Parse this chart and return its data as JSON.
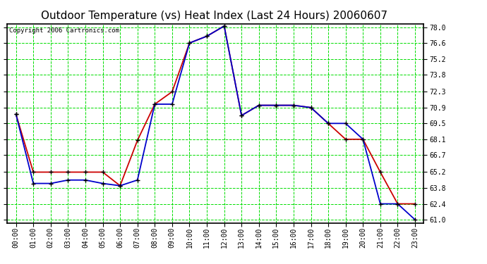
{
  "title": "Outdoor Temperature (vs) Heat Index (Last 24 Hours) 20060607",
  "copyright": "Copyright 2006 Cartronics.com",
  "hours": [
    "00:00",
    "01:00",
    "02:00",
    "03:00",
    "04:00",
    "05:00",
    "06:00",
    "07:00",
    "08:00",
    "09:00",
    "10:00",
    "11:00",
    "12:00",
    "13:00",
    "14:00",
    "15:00",
    "16:00",
    "17:00",
    "18:00",
    "19:00",
    "20:00",
    "21:00",
    "22:00",
    "23:00"
  ],
  "temp": [
    70.3,
    64.2,
    64.2,
    64.5,
    64.5,
    64.2,
    64.0,
    64.5,
    71.2,
    71.2,
    76.6,
    77.2,
    78.1,
    70.2,
    71.1,
    71.1,
    71.1,
    70.9,
    69.5,
    69.5,
    68.1,
    62.4,
    62.4,
    61.0
  ],
  "heat_index": [
    70.3,
    65.2,
    65.2,
    65.2,
    65.2,
    65.2,
    64.0,
    68.0,
    71.2,
    72.3,
    76.6,
    77.2,
    78.1,
    70.2,
    71.1,
    71.1,
    71.1,
    70.9,
    69.5,
    68.1,
    68.1,
    65.2,
    62.4,
    62.4
  ],
  "temp_color": "#0000cc",
  "heat_color": "#cc0000",
  "bg_color": "#ffffff",
  "grid_color": "#00dd00",
  "ylim_min": 61.0,
  "ylim_max": 78.0,
  "yticks": [
    61.0,
    62.4,
    63.8,
    65.2,
    66.7,
    68.1,
    69.5,
    70.9,
    72.3,
    73.8,
    75.2,
    76.6,
    78.0
  ],
  "title_fontsize": 11,
  "copyright_fontsize": 6.5,
  "tick_fontsize": 7
}
